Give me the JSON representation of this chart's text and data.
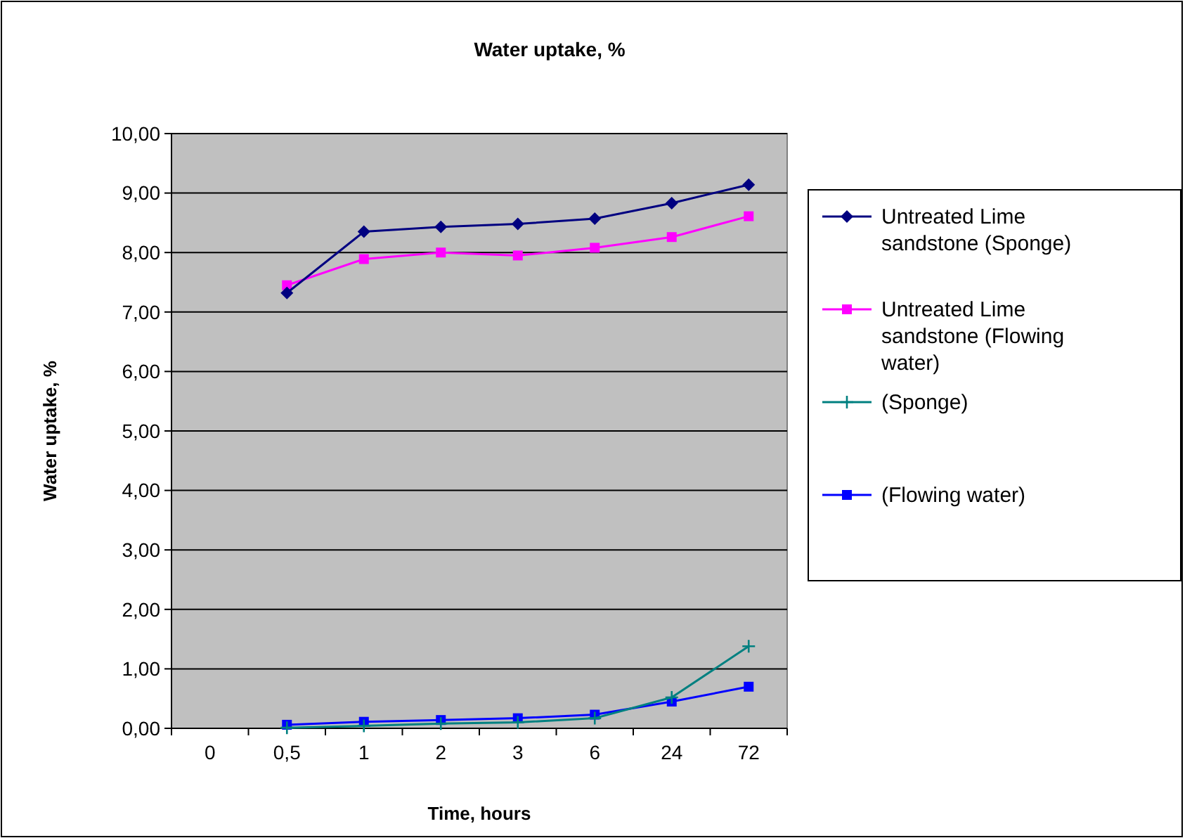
{
  "chart_data": {
    "type": "line",
    "title": "Water uptake, %",
    "xlabel": "Time, hours",
    "ylabel": "Water uptake, %",
    "categories": [
      "0",
      "0,5",
      "1",
      "2",
      "3",
      "6",
      "24",
      "72"
    ],
    "series": [
      {
        "name": "Untreated Lime sandstone (Sponge)",
        "color": "#000080",
        "marker": "diamond",
        "values": [
          null,
          7.32,
          8.35,
          8.43,
          8.48,
          8.57,
          8.83,
          9.14
        ]
      },
      {
        "name": "Untreated Lime sandstone (Flowing water)",
        "color": "#ff00ff",
        "marker": "square",
        "values": [
          null,
          7.45,
          7.89,
          8.0,
          7.95,
          8.08,
          8.26,
          8.61
        ]
      },
      {
        "name": "(Sponge)",
        "color": "#008080",
        "marker": "cross",
        "values": [
          null,
          0.01,
          0.04,
          0.08,
          0.1,
          0.17,
          0.52,
          1.38
        ]
      },
      {
        "name": "(Flowing water)",
        "color": "#0000ff",
        "marker": "square",
        "values": [
          null,
          0.06,
          0.11,
          0.14,
          0.17,
          0.23,
          0.45,
          0.7
        ]
      }
    ],
    "ylim": [
      0,
      10
    ],
    "yticks": [
      {
        "value": 0,
        "label": "0,00"
      },
      {
        "value": 1,
        "label": "1,00"
      },
      {
        "value": 2,
        "label": "2,00"
      },
      {
        "value": 3,
        "label": "3,00"
      },
      {
        "value": 4,
        "label": "4,00"
      },
      {
        "value": 5,
        "label": "5,00"
      },
      {
        "value": 6,
        "label": "6,00"
      },
      {
        "value": 7,
        "label": "7,00"
      },
      {
        "value": 8,
        "label": "8,00"
      },
      {
        "value": 9,
        "label": "9,00"
      },
      {
        "value": 10,
        "label": "10,00"
      }
    ],
    "grid": "y",
    "legend": "right"
  }
}
